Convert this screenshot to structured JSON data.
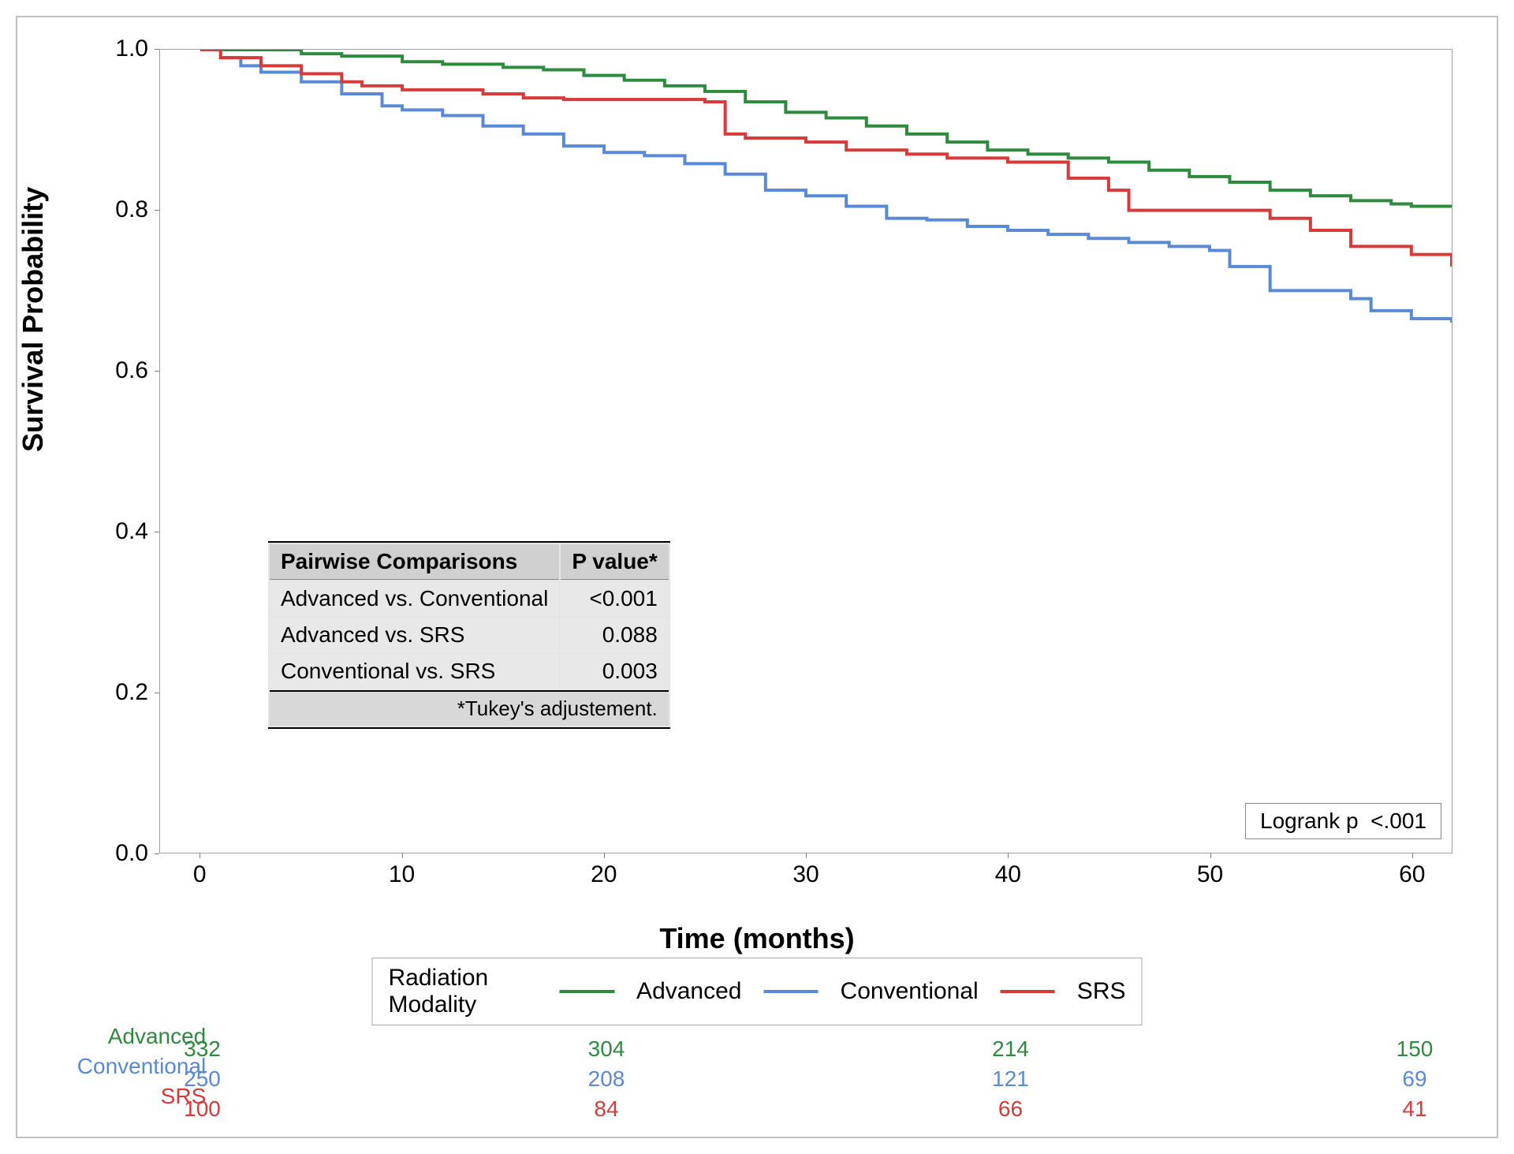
{
  "chart": {
    "type": "kaplan-meier-survival",
    "background_color": "#ffffff",
    "border_color": "#c0c0c0",
    "axis_color": "#a0a0a0",
    "y_axis": {
      "label": "Survival Probability",
      "min": 0.0,
      "max": 1.0,
      "ticks": [
        0.0,
        0.2,
        0.4,
        0.6,
        0.8,
        1.0
      ],
      "label_fontsize": 36,
      "tick_fontsize": 30,
      "font_weight": "bold"
    },
    "x_axis": {
      "label": "Time (months)",
      "min": -2,
      "max": 62,
      "ticks": [
        0,
        10,
        20,
        30,
        40,
        50,
        60
      ],
      "label_fontsize": 36,
      "tick_fontsize": 30,
      "font_weight": "bold"
    },
    "line_width": 4,
    "series": {
      "advanced": {
        "label": "Advanced",
        "color": "#2e8b3d",
        "points": [
          [
            0,
            1.0
          ],
          [
            3,
            1.0
          ],
          [
            5,
            0.995
          ],
          [
            7,
            0.992
          ],
          [
            10,
            0.985
          ],
          [
            12,
            0.982
          ],
          [
            15,
            0.978
          ],
          [
            17,
            0.975
          ],
          [
            19,
            0.968
          ],
          [
            21,
            0.962
          ],
          [
            23,
            0.955
          ],
          [
            25,
            0.948
          ],
          [
            27,
            0.935
          ],
          [
            29,
            0.922
          ],
          [
            31,
            0.915
          ],
          [
            33,
            0.905
          ],
          [
            35,
            0.895
          ],
          [
            37,
            0.885
          ],
          [
            39,
            0.875
          ],
          [
            41,
            0.87
          ],
          [
            43,
            0.865
          ],
          [
            45,
            0.86
          ],
          [
            47,
            0.85
          ],
          [
            49,
            0.842
          ],
          [
            51,
            0.835
          ],
          [
            53,
            0.825
          ],
          [
            55,
            0.818
          ],
          [
            57,
            0.812
          ],
          [
            59,
            0.808
          ],
          [
            60,
            0.805
          ],
          [
            62,
            0.805
          ]
        ]
      },
      "srs": {
        "label": "SRS",
        "color": "#d83a3a",
        "points": [
          [
            0,
            1.0
          ],
          [
            1,
            0.99
          ],
          [
            3,
            0.98
          ],
          [
            5,
            0.97
          ],
          [
            7,
            0.96
          ],
          [
            8,
            0.955
          ],
          [
            10,
            0.95
          ],
          [
            14,
            0.945
          ],
          [
            16,
            0.94
          ],
          [
            18,
            0.938
          ],
          [
            23,
            0.938
          ],
          [
            25,
            0.935
          ],
          [
            26,
            0.895
          ],
          [
            27,
            0.89
          ],
          [
            30,
            0.885
          ],
          [
            32,
            0.875
          ],
          [
            35,
            0.87
          ],
          [
            37,
            0.865
          ],
          [
            40,
            0.86
          ],
          [
            43,
            0.84
          ],
          [
            45,
            0.825
          ],
          [
            46,
            0.8
          ],
          [
            50,
            0.8
          ],
          [
            53,
            0.79
          ],
          [
            55,
            0.775
          ],
          [
            57,
            0.755
          ],
          [
            60,
            0.745
          ],
          [
            62,
            0.73
          ]
        ]
      },
      "conventional": {
        "label": "Conventional",
        "color": "#5a8ad6",
        "points": [
          [
            0,
            1.0
          ],
          [
            1,
            0.99
          ],
          [
            2,
            0.98
          ],
          [
            3,
            0.972
          ],
          [
            5,
            0.96
          ],
          [
            7,
            0.945
          ],
          [
            9,
            0.93
          ],
          [
            10,
            0.925
          ],
          [
            12,
            0.918
          ],
          [
            14,
            0.905
          ],
          [
            16,
            0.895
          ],
          [
            18,
            0.88
          ],
          [
            20,
            0.872
          ],
          [
            22,
            0.868
          ],
          [
            24,
            0.858
          ],
          [
            26,
            0.845
          ],
          [
            28,
            0.825
          ],
          [
            30,
            0.818
          ],
          [
            32,
            0.805
          ],
          [
            34,
            0.79
          ],
          [
            36,
            0.788
          ],
          [
            38,
            0.78
          ],
          [
            40,
            0.775
          ],
          [
            42,
            0.77
          ],
          [
            44,
            0.765
          ],
          [
            46,
            0.76
          ],
          [
            48,
            0.755
          ],
          [
            50,
            0.75
          ],
          [
            51,
            0.73
          ],
          [
            53,
            0.7
          ],
          [
            55,
            0.7
          ],
          [
            57,
            0.69
          ],
          [
            58,
            0.675
          ],
          [
            60,
            0.665
          ],
          [
            62,
            0.66
          ]
        ]
      }
    },
    "comparison_table": {
      "header_bg": "#d0d0d0",
      "row_bg": "#e8e8e8",
      "columns": [
        "Pairwise Comparisons",
        "P value*"
      ],
      "rows": [
        [
          "Advanced vs. Conventional",
          "<0.001"
        ],
        [
          "Advanced vs. SRS",
          "0.088"
        ],
        [
          "Conventional vs. SRS",
          "0.003"
        ]
      ],
      "footnote": "*Tukey's adjustement."
    },
    "logrank": {
      "label": "Logrank p",
      "value": "<.001"
    },
    "legend": {
      "title": "Radiation Modality",
      "border_color": "#aaaaaa",
      "fontsize": 30
    },
    "risk_table": {
      "time_points": [
        0,
        20,
        40,
        60
      ],
      "rows": [
        {
          "label": "Advanced",
          "color": "#2e8b3d",
          "values": [
            332,
            304,
            214,
            150
          ]
        },
        {
          "label": "Conventional",
          "color": "#5a8ad6",
          "values": [
            250,
            208,
            121,
            69
          ]
        },
        {
          "label": "SRS",
          "color": "#d83a3a",
          "values": [
            100,
            84,
            66,
            41
          ]
        }
      ],
      "fontsize": 28
    }
  }
}
